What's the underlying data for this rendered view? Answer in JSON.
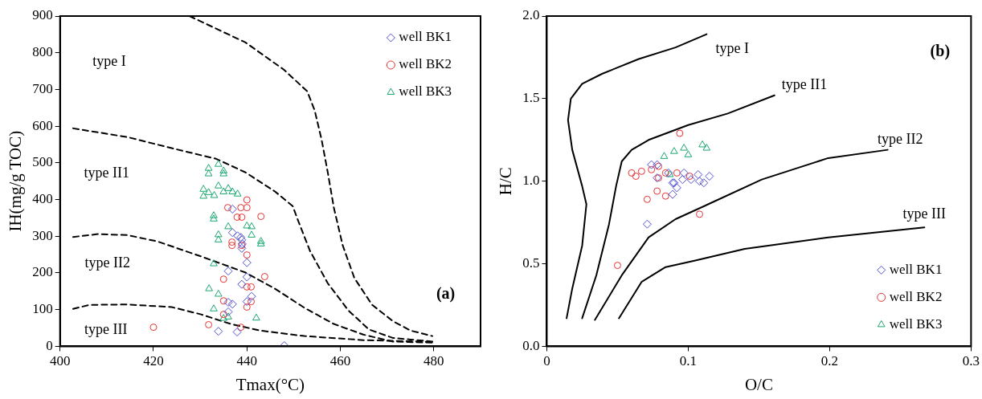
{
  "chart_data": [
    {
      "type": "scatter",
      "xlabel": "Tmax(°C)",
      "ylabel": "IH(mg/g TOC)",
      "xlim": [
        400,
        490
      ],
      "xticks": [
        400,
        420,
        440,
        460,
        480
      ],
      "ylim": [
        0,
        900
      ],
      "yticks": [
        0,
        100,
        200,
        300,
        400,
        500,
        600,
        700,
        800,
        900
      ],
      "grid": false,
      "legend": "top right",
      "annotations": [
        "type I",
        "type II1",
        "type II2",
        "type III",
        "(a)"
      ],
      "series": [
        {
          "name": "well BK1",
          "color": "#5050d8",
          "marker": "diamond",
          "x": [
            436.9,
            436.9,
            438,
            438.7,
            438.9,
            439,
            438.9,
            440,
            436,
            440,
            438.9,
            441,
            440,
            436,
            436.9,
            436,
            433.9,
            437.9,
            448
          ],
          "values": [
            374,
            310,
            301,
            297,
            290,
            279,
            267,
            228,
            205,
            189,
            169,
            136,
            122,
            120,
            115,
            94,
            41,
            39,
            2
          ]
        },
        {
          "name": "well BK2",
          "color": "#e83030",
          "marker": "circle",
          "x": [
            440,
            435.9,
            438.7,
            440,
            437.9,
            438.9,
            443,
            436.8,
            436.8,
            438.9,
            440,
            435,
            443.8,
            440,
            440.9,
            435,
            440.9,
            440,
            435,
            431.8,
            438.7,
            420
          ],
          "values": [
            399,
            378,
            378,
            378,
            352,
            352,
            354,
            284,
            275,
            275,
            249,
            183,
            190,
            162,
            162,
            124,
            122,
            107,
            87,
            59,
            52,
            52
          ]
        },
        {
          "name": "well BK3",
          "color": "#1aa870",
          "marker": "triangle",
          "x": [
            431.8,
            431.8,
            433.9,
            435,
            435,
            430.7,
            430.7,
            431.8,
            433,
            433.9,
            435,
            436,
            436.9,
            438,
            432.9,
            432.9,
            436,
            433.9,
            433.9,
            440,
            441,
            441,
            443,
            443,
            432.9,
            431.9,
            433.9,
            432.9,
            435,
            436,
            442
          ],
          "values": [
            485,
            470,
            496,
            478,
            470,
            428,
            409,
            419,
            411,
            437,
            421,
            430,
            421,
            415,
            356,
            347,
            326,
            304,
            290,
            328,
            326,
            303,
            286,
            279,
            225,
            157,
            142,
            102,
            76,
            80,
            77
          ]
        },
        {
          "type": "line",
          "color": "#000000",
          "marker": "none",
          "line_style": "dashed",
          "x": [
            427.7,
            439.7,
            447.9,
            452.9,
            454.5,
            456,
            457.3,
            458.6,
            460.5,
            463,
            466.8,
            471.2,
            475,
            479.7
          ],
          "values": [
            900,
            828,
            754,
            695,
            643,
            562,
            474,
            378,
            275,
            186,
            113,
            69,
            43,
            28
          ]
        },
        {
          "type": "line",
          "color": "#000000",
          "marker": "none",
          "line_style": "dashed",
          "x": [
            402.8,
            414.5,
            423.9,
            433.4,
            439.7,
            446,
            449.8,
            451,
            453.5,
            457.3,
            461.7,
            466.1,
            471.2,
            479.7
          ],
          "values": [
            594,
            570,
            540,
            511,
            474,
            422,
            382,
            341,
            260,
            172,
            98,
            46,
            23,
            13
          ]
        },
        {
          "type": "line",
          "color": "#000000",
          "marker": "none",
          "line_style": "dashed",
          "x": [
            402.8,
            408.2,
            414.5,
            420.8,
            430.2,
            439.7,
            446,
            452.3,
            458.6,
            464.9,
            471.2,
            479.7
          ],
          "values": [
            298,
            306,
            303,
            286,
            245,
            201,
            157,
            105,
            61,
            32,
            13,
            10
          ]
        },
        {
          "type": "line",
          "color": "#000000",
          "marker": "none",
          "line_style": "dashed",
          "x": [
            402.8,
            406.3,
            414.5,
            423.9,
            430.2,
            436.5,
            442.8,
            452.3,
            464.9,
            479.7
          ],
          "values": [
            102,
            113,
            114,
            107,
            87,
            61,
            43,
            28,
            17,
            12
          ]
        }
      ]
    },
    {
      "type": "scatter",
      "xlabel": "O/C",
      "ylabel": "H/C",
      "xlim": [
        0,
        0.3
      ],
      "xticks": [
        0,
        0.1,
        0.2,
        0.3
      ],
      "ylim": [
        0,
        2
      ],
      "yticks": [
        {
          "value": 0,
          "label": "0.0"
        },
        {
          "value": 0.5,
          "label": "0.5"
        },
        {
          "value": 1,
          "label": "1.0"
        },
        {
          "value": 1.5,
          "label": "1.5"
        },
        {
          "value": 2,
          "label": "2.0"
        }
      ],
      "grid": false,
      "legend": "bottom right",
      "annotations": [
        "type I",
        "type II1",
        "type II2",
        "type III",
        "(b)"
      ],
      "series": [
        {
          "name": "well BK1",
          "color": "#5050d8",
          "marker": "diamond",
          "x": [
            0.074,
            0.078,
            0.078,
            0.089,
            0.09,
            0.092,
            0.089,
            0.097,
            0.096,
            0.102,
            0.107,
            0.108,
            0.111,
            0.115,
            0.071,
            0.086
          ],
          "values": [
            1.1,
            1.1,
            1.02,
            0.99,
            0.99,
            0.96,
            0.92,
            1.05,
            1.01,
            1.01,
            1.04,
            1.0,
            0.99,
            1.03,
            0.74,
            1.05
          ]
        },
        {
          "name": "well BK2",
          "color": "#e83030",
          "marker": "circle",
          "x": [
            0.094,
            0.06,
            0.063,
            0.067,
            0.074,
            0.079,
            0.079,
            0.084,
            0.092,
            0.101,
            0.078,
            0.071,
            0.084,
            0.108,
            0.05
          ],
          "values": [
            1.29,
            1.05,
            1.03,
            1.06,
            1.07,
            1.09,
            1.02,
            1.05,
            1.05,
            1.03,
            0.94,
            0.89,
            0.91,
            0.8,
            0.49
          ]
        },
        {
          "name": "well BK3",
          "color": "#1aa870",
          "marker": "triangle",
          "x": [
            0.083,
            0.09,
            0.097,
            0.1,
            0.11,
            0.113,
            0.087
          ],
          "values": [
            1.15,
            1.18,
            1.2,
            1.16,
            1.22,
            1.2,
            1.04
          ]
        },
        {
          "type": "line",
          "color": "#000000",
          "marker": "none",
          "line_style": "solid",
          "x": [
            0.014,
            0.018,
            0.025,
            0.028,
            0.025,
            0.018,
            0.015,
            0.017,
            0.025,
            0.039,
            0.065,
            0.091,
            0.113
          ],
          "values": [
            0.17,
            0.35,
            0.61,
            0.86,
            0.97,
            1.19,
            1.37,
            1.5,
            1.59,
            1.65,
            1.74,
            1.81,
            1.89
          ]
        },
        {
          "type": "line",
          "color": "#000000",
          "marker": "none",
          "line_style": "solid",
          "x": [
            0.025,
            0.035,
            0.044,
            0.049,
            0.053,
            0.06,
            0.072,
            0.1,
            0.128,
            0.161
          ],
          "values": [
            0.17,
            0.43,
            0.74,
            0.97,
            1.12,
            1.19,
            1.25,
            1.34,
            1.41,
            1.52
          ]
        },
        {
          "type": "line",
          "color": "#000000",
          "marker": "none",
          "line_style": "solid",
          "x": [
            0.034,
            0.053,
            0.072,
            0.091,
            0.114,
            0.152,
            0.199,
            0.241
          ],
          "values": [
            0.16,
            0.43,
            0.66,
            0.77,
            0.86,
            1.01,
            1.14,
            1.19
          ]
        },
        {
          "type": "line",
          "color": "#000000",
          "marker": "none",
          "line_style": "solid",
          "x": [
            0.051,
            0.067,
            0.084,
            0.105,
            0.14,
            0.199,
            0.267
          ],
          "values": [
            0.17,
            0.39,
            0.48,
            0.52,
            0.59,
            0.66,
            0.72
          ]
        }
      ]
    }
  ]
}
